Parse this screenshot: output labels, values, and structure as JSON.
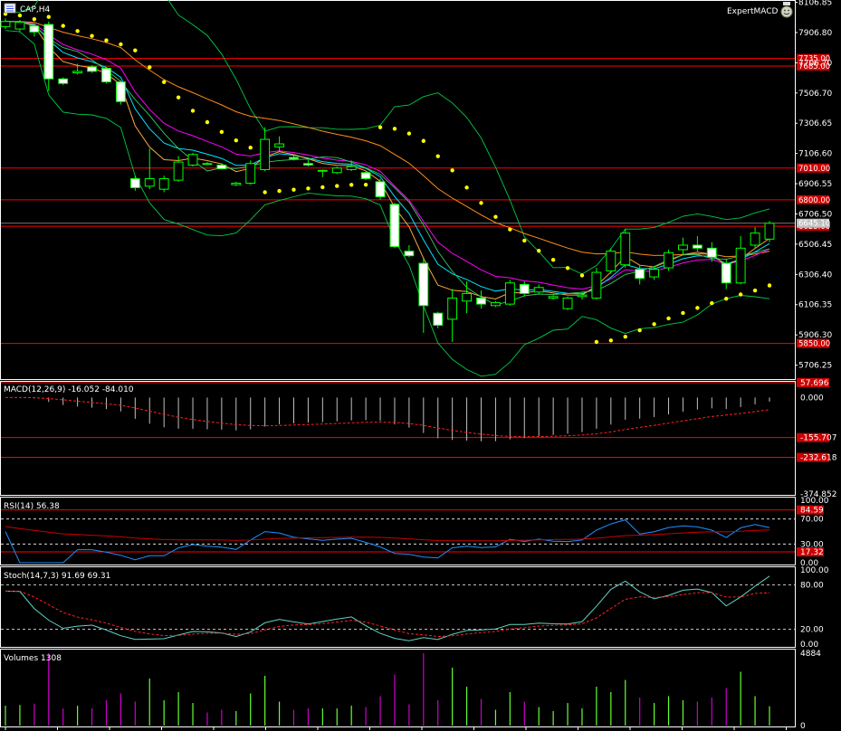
{
  "window": {
    "symbol_label": "CAP,H4",
    "expert_label": "ExpertMACD"
  },
  "price_panel": {
    "y_ticks": [
      "8106.85",
      "7906.80",
      "7706.70",
      "7506.70",
      "7306.65",
      "7106.60",
      "6906.55",
      "6706.50",
      "6506.45",
      "6306.40",
      "6106.35",
      "5906.30",
      "5706.25"
    ],
    "level_tags": [
      "7735.00",
      "7685.00",
      "7010.00",
      "6800.00",
      "6625.00",
      "5850.00"
    ],
    "current_price_tag": "6645.10"
  },
  "macd_panel": {
    "label": "MACD(12,26,9) -16.052 -84.010",
    "y_ticks": [
      "0.000",
      "-374.852"
    ],
    "level_tags": [
      "57.696",
      "-155.707",
      "-232.618"
    ]
  },
  "rsi_panel": {
    "label": "RSI(14) 56.38",
    "y_ticks": [
      "100.00",
      "70.00",
      "30.00",
      "0.00"
    ],
    "level_tags": [
      "84.59",
      "17.32"
    ]
  },
  "stoch_panel": {
    "label": "Stoch(14,7,3) 91.69 69.31",
    "y_ticks": [
      "100.00",
      "80.00",
      "20.00",
      "0.00"
    ]
  },
  "volume_panel": {
    "label": "Volumes 1308",
    "y_ticks": [
      "4884",
      "0"
    ]
  },
  "colors": {
    "background": "#000000",
    "bull_candle": "#ffffff",
    "candle_outline": "#00ff00",
    "level_line": "#ff0000",
    "psar": "#ffff00",
    "ma_orange": "#ff8c1a",
    "ma_magenta": "#ff00ff",
    "ma_cyan": "#00e5ff",
    "bands": "#00cc44",
    "macd_hist": "#c0c0c0",
    "rsi_line": "#1e90ff",
    "volume_up": "#66ff33",
    "volume_down": "#cc00cc"
  },
  "chart_data": {
    "type": "line",
    "title": "CAP,H4",
    "indicators": [
      "ExpertMACD",
      "MACD(12,26,9)",
      "RSI(14)",
      "Stoch(14,7,3)",
      "Volumes"
    ],
    "candles": [
      {
        "o": 7946,
        "h": 8000,
        "l": 7930,
        "c": 7980
      },
      {
        "o": 7930,
        "h": 7990,
        "l": 7915,
        "c": 7975
      },
      {
        "o": 7950,
        "h": 7965,
        "l": 7880,
        "c": 7910
      },
      {
        "o": 7960,
        "h": 7980,
        "l": 7520,
        "c": 7600
      },
      {
        "o": 7600,
        "h": 7610,
        "l": 7560,
        "c": 7570
      },
      {
        "o": 7640,
        "h": 7700,
        "l": 7630,
        "c": 7650
      },
      {
        "o": 7680,
        "h": 7690,
        "l": 7640,
        "c": 7650
      },
      {
        "o": 7670,
        "h": 7680,
        "l": 7570,
        "c": 7580
      },
      {
        "o": 7580,
        "h": 7590,
        "l": 7430,
        "c": 7450
      },
      {
        "o": 6940,
        "h": 6960,
        "l": 6860,
        "c": 6880
      },
      {
        "o": 6890,
        "h": 7140,
        "l": 6870,
        "c": 6940
      },
      {
        "o": 6870,
        "h": 6960,
        "l": 6850,
        "c": 6940
      },
      {
        "o": 6930,
        "h": 7090,
        "l": 6920,
        "c": 7050
      },
      {
        "o": 7030,
        "h": 7110,
        "l": 7020,
        "c": 7100
      },
      {
        "o": 7040,
        "h": 7050,
        "l": 7030,
        "c": 7035
      },
      {
        "o": 7030,
        "h": 7040,
        "l": 7000,
        "c": 7005
      },
      {
        "o": 6900,
        "h": 6920,
        "l": 6890,
        "c": 6910
      },
      {
        "o": 6910,
        "h": 7060,
        "l": 6900,
        "c": 7040
      },
      {
        "o": 7000,
        "h": 7280,
        "l": 6990,
        "c": 7200
      },
      {
        "o": 7150,
        "h": 7220,
        "l": 7120,
        "c": 7170
      },
      {
        "o": 7080,
        "h": 7100,
        "l": 7060,
        "c": 7070
      },
      {
        "o": 7040,
        "h": 7070,
        "l": 7020,
        "c": 7030
      },
      {
        "o": 6990,
        "h": 7000,
        "l": 6950,
        "c": 6995
      },
      {
        "o": 6980,
        "h": 7020,
        "l": 6970,
        "c": 7010
      },
      {
        "o": 7000,
        "h": 7060,
        "l": 6990,
        "c": 7020
      },
      {
        "o": 6980,
        "h": 6990,
        "l": 6930,
        "c": 6940
      },
      {
        "o": 6920,
        "h": 6940,
        "l": 6800,
        "c": 6820
      },
      {
        "o": 6770,
        "h": 6780,
        "l": 6480,
        "c": 6490
      },
      {
        "o": 6460,
        "h": 6500,
        "l": 6420,
        "c": 6430
      },
      {
        "o": 6380,
        "h": 6420,
        "l": 5920,
        "c": 6100
      },
      {
        "o": 6050,
        "h": 6060,
        "l": 5950,
        "c": 5970
      },
      {
        "o": 6010,
        "h": 6210,
        "l": 5860,
        "c": 6150
      },
      {
        "o": 6130,
        "h": 6260,
        "l": 6050,
        "c": 6180
      },
      {
        "o": 6150,
        "h": 6200,
        "l": 6080,
        "c": 6110
      },
      {
        "o": 6100,
        "h": 6130,
        "l": 6090,
        "c": 6120
      },
      {
        "o": 6110,
        "h": 6270,
        "l": 6100,
        "c": 6250
      },
      {
        "o": 6240,
        "h": 6260,
        "l": 6160,
        "c": 6180
      },
      {
        "o": 6190,
        "h": 6240,
        "l": 6180,
        "c": 6220
      },
      {
        "o": 6150,
        "h": 6170,
        "l": 6140,
        "c": 6160
      },
      {
        "o": 6080,
        "h": 6160,
        "l": 6070,
        "c": 6150
      },
      {
        "o": 6160,
        "h": 6190,
        "l": 6140,
        "c": 6170
      },
      {
        "o": 6150,
        "h": 6350,
        "l": 6140,
        "c": 6320
      },
      {
        "o": 6330,
        "h": 6480,
        "l": 6310,
        "c": 6460
      },
      {
        "o": 6370,
        "h": 6610,
        "l": 6350,
        "c": 6580
      },
      {
        "o": 6340,
        "h": 6370,
        "l": 6240,
        "c": 6280
      },
      {
        "o": 6290,
        "h": 6360,
        "l": 6270,
        "c": 6340
      },
      {
        "o": 6350,
        "h": 6470,
        "l": 6330,
        "c": 6450
      },
      {
        "o": 6470,
        "h": 6550,
        "l": 6440,
        "c": 6500
      },
      {
        "o": 6500,
        "h": 6560,
        "l": 6460,
        "c": 6480
      },
      {
        "o": 6480,
        "h": 6520,
        "l": 6390,
        "c": 6420
      },
      {
        "o": 6380,
        "h": 6410,
        "l": 6210,
        "c": 6250
      },
      {
        "o": 6250,
        "h": 6560,
        "l": 6240,
        "c": 6480
      },
      {
        "o": 6500,
        "h": 6620,
        "l": 6480,
        "c": 6580
      },
      {
        "o": 6540,
        "h": 6660,
        "l": 6520,
        "c": 6645
      }
    ],
    "levels": [
      7735,
      7685,
      7010,
      6800,
      6625,
      5850
    ],
    "last_price": 6645.1,
    "price_range": [
      5620,
      8110
    ],
    "macd": {
      "params": "12,26,9",
      "main_last": -16.052,
      "signal_last": -84.01,
      "range": [
        -374.852,
        57.696
      ],
      "levels": [
        -155.707,
        -232.618
      ]
    },
    "rsi": {
      "params": "14",
      "last": 56.38,
      "levels": [
        70,
        30
      ]
    },
    "stoch": {
      "params": "14,7,3",
      "main_last": 91.69,
      "signal_last": 69.31,
      "levels": [
        80,
        20
      ]
    },
    "volume": {
      "last": 1308,
      "max": 4884
    }
  }
}
